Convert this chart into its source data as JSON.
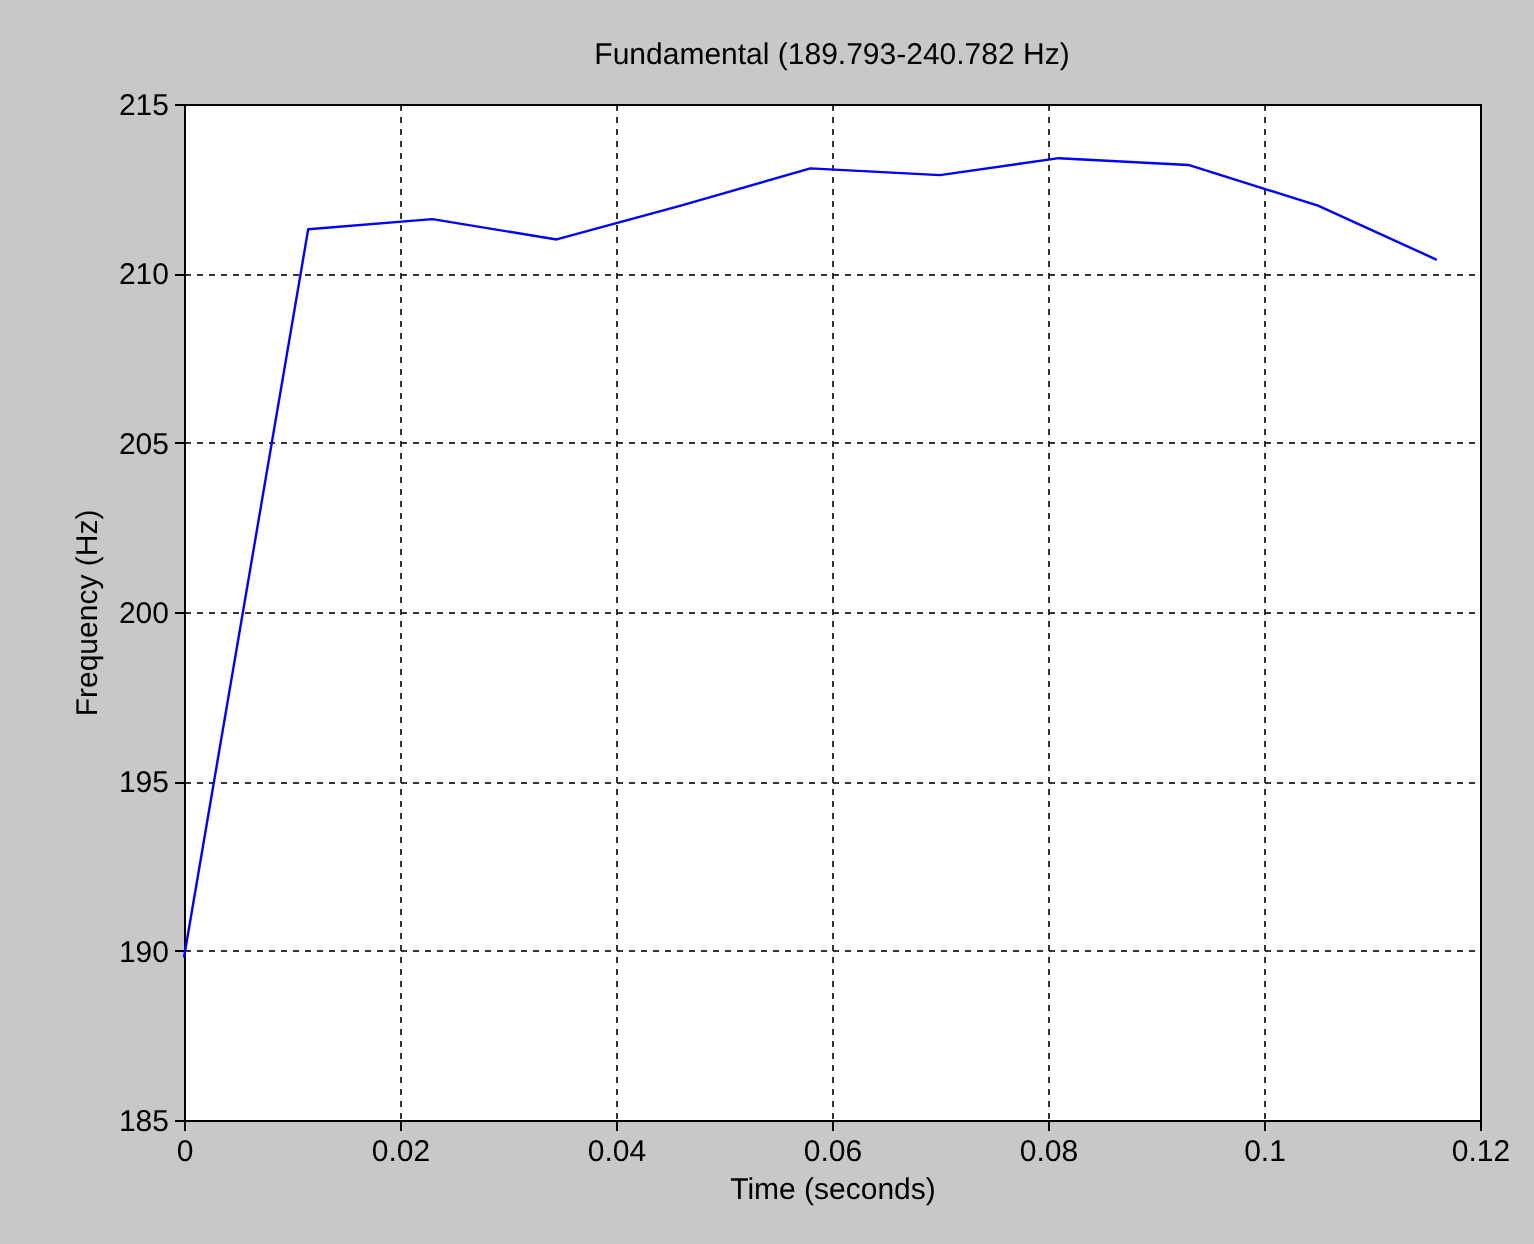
{
  "chart_data": {
    "type": "line",
    "title": "Fundamental (189.793-240.782 Hz)",
    "xlabel": "Time (seconds)",
    "ylabel": "Frequency (Hz)",
    "x": [
      0,
      0.0115,
      0.023,
      0.0345,
      0.046,
      0.058,
      0.07,
      0.081,
      0.093,
      0.105,
      0.116
    ],
    "series": [
      {
        "color": "#0000ff",
        "values": [
          189.8,
          211.3,
          211.6,
          211.0,
          212.0,
          213.1,
          212.9,
          213.4,
          213.2,
          212.0,
          210.4
        ]
      }
    ],
    "xlim": [
      0,
      0.12
    ],
    "xticks": [
      0,
      0.02,
      0.04,
      0.06,
      0.08,
      0.1,
      0.12
    ],
    "ylim": [
      185,
      215
    ],
    "yticks": [
      185,
      190,
      195,
      200,
      205,
      210,
      215
    ],
    "grid": true,
    "line_style": "solid"
  }
}
